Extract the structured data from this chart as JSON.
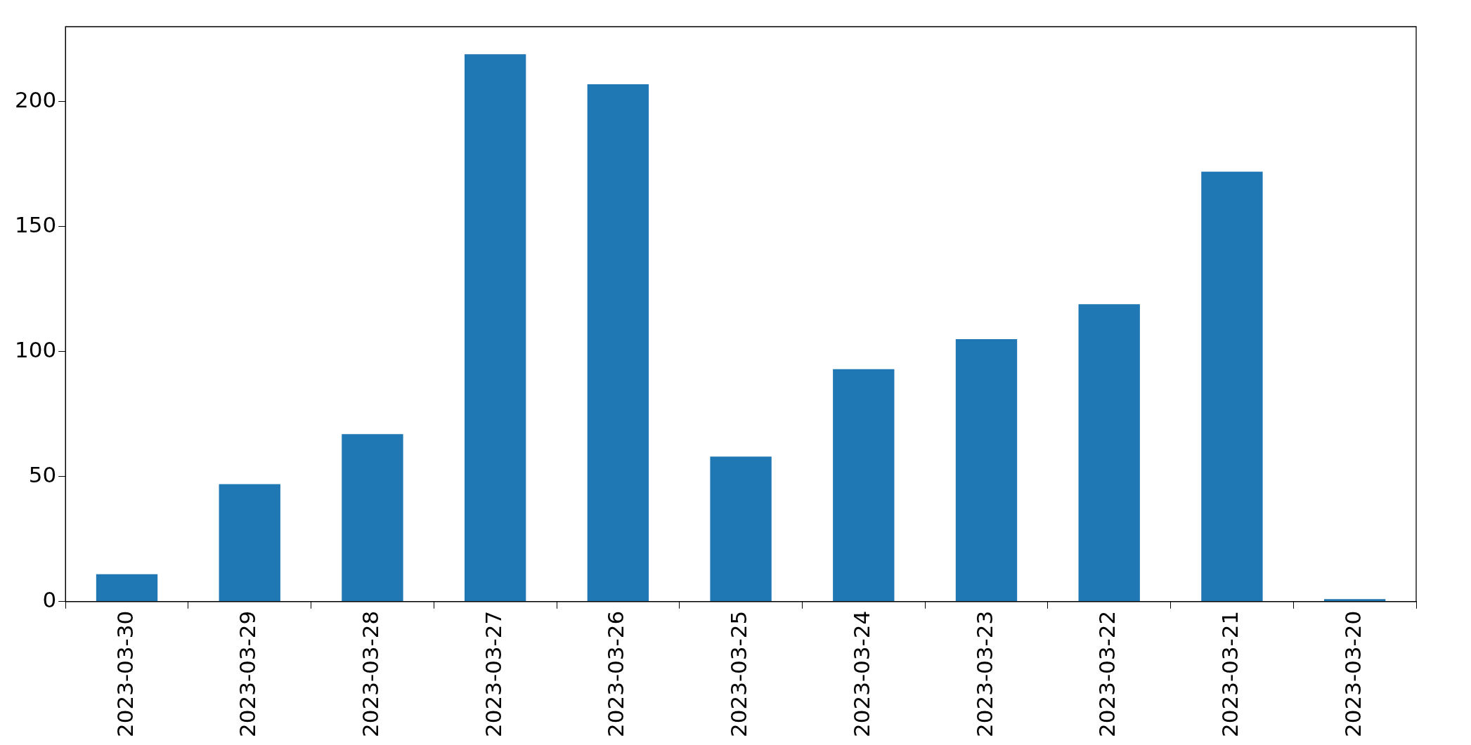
{
  "chart_data": {
    "type": "bar",
    "categories": [
      "2023-03-30",
      "2023-03-29",
      "2023-03-28",
      "2023-03-27",
      "2023-03-26",
      "2023-03-25",
      "2023-03-24",
      "2023-03-23",
      "2023-03-22",
      "2023-03-21",
      "2023-03-20"
    ],
    "values": [
      11,
      47,
      67,
      219,
      207,
      58,
      93,
      105,
      119,
      172,
      1
    ],
    "color": "#1f77b4",
    "ylim": [
      0,
      230
    ],
    "yticks": [
      0,
      50,
      100,
      150,
      200
    ],
    "grid": false,
    "legend": false
  }
}
